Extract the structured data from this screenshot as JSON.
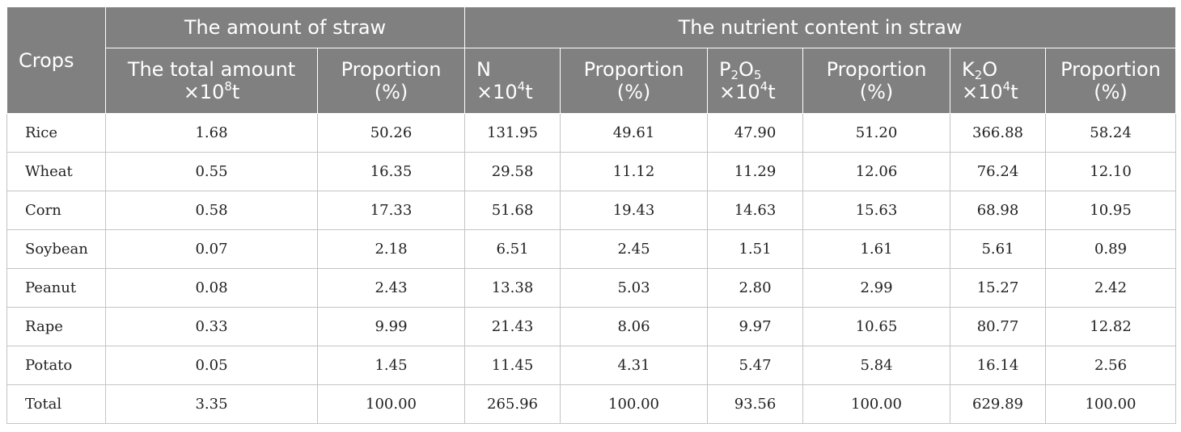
{
  "header": {
    "crops": "Crops",
    "group_amount": "The amount of straw",
    "group_nutrient": "The nutrient content in straw",
    "total_amount": {
      "line1": "The total amount",
      "prefix": "×10",
      "exp": "8",
      "suffix": "t"
    },
    "proportion": {
      "line1": "Proportion",
      "line2": "(%)"
    },
    "n": {
      "line1": "N",
      "prefix": "×10",
      "exp": "4",
      "suffix": "t"
    },
    "p2o5": {
      "p": "P",
      "sub1": "2",
      "o": "O",
      "sub2": "5",
      "prefix": "×10",
      "exp": "4",
      "suffix": "t"
    },
    "k2o": {
      "k": "K",
      "sub1": "2",
      "o": "O",
      "prefix": "×10",
      "exp": "4",
      "suffix": "t"
    }
  },
  "rows": [
    {
      "crop": "Rice",
      "cells": [
        "1.68",
        "50.26",
        "131.95",
        "49.61",
        "47.90",
        "51.20",
        "366.88",
        "58.24"
      ]
    },
    {
      "crop": "Wheat",
      "cells": [
        "0.55",
        "16.35",
        "29.58",
        "11.12",
        "11.29",
        "12.06",
        "76.24",
        "12.10"
      ]
    },
    {
      "crop": "Corn",
      "cells": [
        "0.58",
        "17.33",
        "51.68",
        "19.43",
        "14.63",
        "15.63",
        "68.98",
        "10.95"
      ]
    },
    {
      "crop": "Soybean",
      "cells": [
        "0.07",
        "2.18",
        "6.51",
        "2.45",
        "1.51",
        "1.61",
        "5.61",
        "0.89"
      ]
    },
    {
      "crop": "Peanut",
      "cells": [
        "0.08",
        "2.43",
        "13.38",
        "5.03",
        "2.80",
        "2.99",
        "15.27",
        "2.42"
      ]
    },
    {
      "crop": "Rape",
      "cells": [
        "0.33",
        "9.99",
        "21.43",
        "8.06",
        "9.97",
        "10.65",
        "80.77",
        "12.82"
      ]
    },
    {
      "crop": "Potato",
      "cells": [
        "0.05",
        "1.45",
        "11.45",
        "4.31",
        "5.47",
        "5.84",
        "16.14",
        "2.56"
      ]
    },
    {
      "crop": "Total",
      "cells": [
        "3.35",
        "100.00",
        "265.96",
        "100.00",
        "93.56",
        "100.00",
        "629.89",
        "100.00"
      ]
    }
  ],
  "colors": {
    "header_bg": "#808080",
    "header_text": "#ffffff",
    "grid": "#c4c4c4"
  }
}
